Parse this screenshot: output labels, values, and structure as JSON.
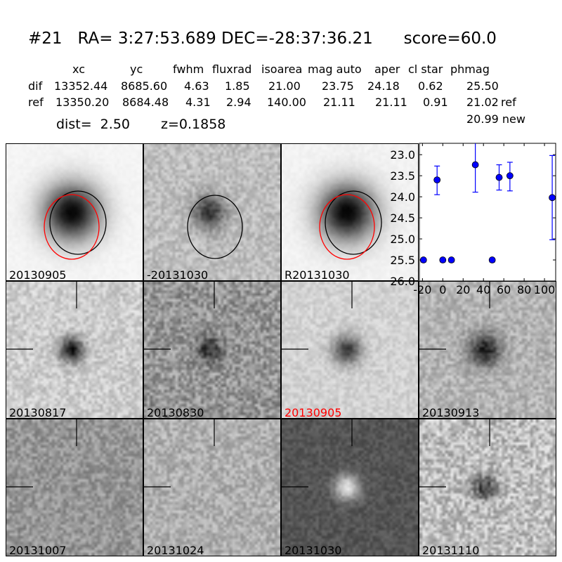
{
  "header": {
    "title": "#21   RA= 3:27:53.689 DEC=-28:37:36.21      score=60.0",
    "columns": [
      "xc",
      "yc",
      "fwhm",
      "fluxrad",
      "isoarea",
      "mag auto",
      "aper",
      "cl star",
      "phmag"
    ],
    "rows": [
      {
        "label": "dif",
        "values": [
          "13352.44",
          "8685.60",
          "4.63",
          "1.85",
          "21.00",
          "23.75",
          "24.18",
          "0.62",
          "25.50"
        ],
        "suffix": ""
      },
      {
        "label": "ref",
        "values": [
          "13350.20",
          "8684.48",
          "4.31",
          "2.94",
          "140.00",
          "21.11",
          "21.11",
          "0.91",
          "21.02"
        ],
        "suffix": "ref"
      }
    ],
    "new_phmag": "20.99 new",
    "dist": "dist=  2.50",
    "z": "z=0.1858"
  },
  "panels": [
    {
      "label": "20130905",
      "label_color": "#000000",
      "style": "light-circles"
    },
    {
      "label": "-20131030",
      "label_color": "#000000",
      "style": "diff-circle"
    },
    {
      "label": "R20131030",
      "label_color": "#000000",
      "style": "light-circles"
    },
    {
      "label": "20130817",
      "label_color": "#000000",
      "style": "stamp"
    },
    {
      "label": "20130830",
      "label_color": "#000000",
      "style": "stamp"
    },
    {
      "label": "20130905",
      "label_color": "#ff0000",
      "style": "stamp"
    },
    {
      "label": "20130913",
      "label_color": "#000000",
      "style": "stamp"
    },
    {
      "label": "20131007",
      "label_color": "#000000",
      "style": "stamp"
    },
    {
      "label": "20131024",
      "label_color": "#000000",
      "style": "stamp"
    },
    {
      "label": "20131030",
      "label_color": "#000000",
      "style": "stamp"
    },
    {
      "label": "20131110",
      "label_color": "#000000",
      "style": "stamp"
    }
  ],
  "chart_data": {
    "type": "scatter",
    "title": "",
    "xlabel": "",
    "ylabel": "",
    "xlim": [
      -23,
      111
    ],
    "ylim": [
      26.0,
      22.73
    ],
    "y_inverted": true,
    "xticks": [
      "-20",
      "0",
      "20",
      "40",
      "60",
      "80",
      "100"
    ],
    "yticks": [
      "23.0",
      "23.5",
      "24.0",
      "24.5",
      "25.0",
      "25.5",
      "26.0"
    ],
    "marker_color": "#0000ff",
    "points": [
      {
        "x": -19,
        "y": 25.5,
        "yerr_low": 25.5,
        "yerr_high": 25.55
      },
      {
        "x": -5.6,
        "y": 23.6,
        "yerr_low": 23.27,
        "yerr_high": 23.95
      },
      {
        "x": 0,
        "y": 25.5,
        "yerr_low": 25.5,
        "yerr_high": 25.55
      },
      {
        "x": 8.5,
        "y": 25.5,
        "yerr_low": 25.5,
        "yerr_high": 25.55
      },
      {
        "x": 32,
        "y": 23.24,
        "yerr_low": 22.6,
        "yerr_high": 23.89
      },
      {
        "x": 48.6,
        "y": 25.5,
        "yerr_low": 25.5,
        "yerr_high": 25.55
      },
      {
        "x": 55.4,
        "y": 23.54,
        "yerr_low": 23.24,
        "yerr_high": 23.84
      },
      {
        "x": 66,
        "y": 23.5,
        "yerr_low": 23.18,
        "yerr_high": 23.86
      },
      {
        "x": 107.6,
        "y": 24.02,
        "yerr_low": 23.02,
        "yerr_high": 25.02
      }
    ]
  }
}
